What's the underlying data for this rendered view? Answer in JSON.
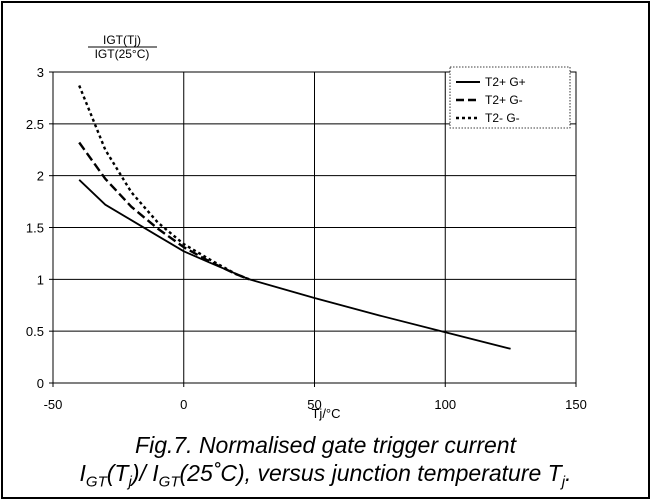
{
  "chart_data": {
    "type": "line",
    "title": "",
    "ylabel_num": "IGT(Tj)",
    "ylabel_den": "IGT(25°C)",
    "xlabel": "Tj/°C",
    "xlim": [
      -50,
      150
    ],
    "ylim": [
      0,
      3
    ],
    "xticks": [
      -50,
      0,
      50,
      100,
      150
    ],
    "yticks": [
      0,
      0.5,
      1,
      1.5,
      2,
      2.5,
      3
    ],
    "grid": true,
    "legend_position": "top-right",
    "series": [
      {
        "name": "T2+ G+",
        "style": "solid",
        "x": [
          -40,
          -30,
          -20,
          -10,
          0,
          10,
          25,
          50,
          75,
          100,
          125
        ],
        "y": [
          1.96,
          1.72,
          1.57,
          1.42,
          1.27,
          1.16,
          1.0,
          0.82,
          0.65,
          0.49,
          0.33
        ]
      },
      {
        "name": "T2+ G-",
        "style": "dashed",
        "x": [
          -40,
          -30,
          -20,
          -10,
          0,
          10,
          20,
          25
        ],
        "y": [
          2.32,
          1.97,
          1.7,
          1.49,
          1.31,
          1.17,
          1.05,
          1.0
        ]
      },
      {
        "name": "T2- G-",
        "style": "dotted",
        "x": [
          -40,
          -30,
          -20,
          -10,
          0,
          10,
          20,
          25
        ],
        "y": [
          2.87,
          2.25,
          1.84,
          1.55,
          1.34,
          1.19,
          1.05,
          1.0
        ]
      }
    ]
  },
  "caption": {
    "line1": "Fig.7.   Normalised gate trigger current",
    "l2_i1": "I",
    "l2_s1": "GT",
    "l2_t1": "(T",
    "l2_s2": "j",
    "l2_t2": ")/ I",
    "l2_s3": "GT",
    "l2_t3": "(25˚C), versus junction temperature T",
    "l2_s4": "j",
    "l2_t4": "."
  }
}
